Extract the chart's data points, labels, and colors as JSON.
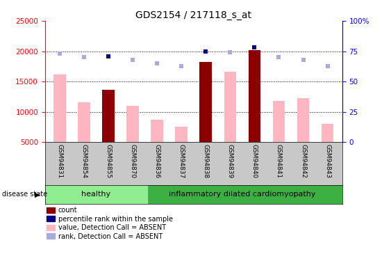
{
  "title": "GDS2154 / 217118_s_at",
  "samples": [
    "GSM94831",
    "GSM94854",
    "GSM94855",
    "GSM94870",
    "GSM94836",
    "GSM94837",
    "GSM94838",
    "GSM94839",
    "GSM94840",
    "GSM94841",
    "GSM94842",
    "GSM94843"
  ],
  "healthy_count": 4,
  "groups": [
    "healthy",
    "inflammatory dilated cardiomyopathy"
  ],
  "bar_values": [
    16200,
    11600,
    13600,
    11000,
    8700,
    7600,
    18200,
    16600,
    20200,
    11800,
    12300,
    8000
  ],
  "bar_is_present": [
    false,
    false,
    true,
    false,
    false,
    false,
    true,
    false,
    true,
    false,
    false,
    false
  ],
  "rank_pct": [
    73,
    70,
    71,
    68,
    65,
    63,
    75,
    74,
    78,
    70,
    68,
    63
  ],
  "rank_is_present": [
    false,
    false,
    true,
    false,
    false,
    false,
    true,
    false,
    true,
    false,
    false,
    false
  ],
  "ylim_left": [
    5000,
    25000
  ],
  "ylim_right": [
    0,
    100
  ],
  "yticks_left": [
    5000,
    10000,
    15000,
    20000,
    25000
  ],
  "yticks_right": [
    0,
    25,
    50,
    75,
    100
  ],
  "grid_values": [
    10000,
    15000,
    20000
  ],
  "color_bar_present": "#8B0000",
  "color_bar_absent": "#FFB6C1",
  "color_rank_present": "#00008B",
  "color_rank_absent": "#AAAADD",
  "healthy_bg": "#90EE90",
  "disease_bg": "#3CB043",
  "xtick_bg": "#C8C8C8"
}
